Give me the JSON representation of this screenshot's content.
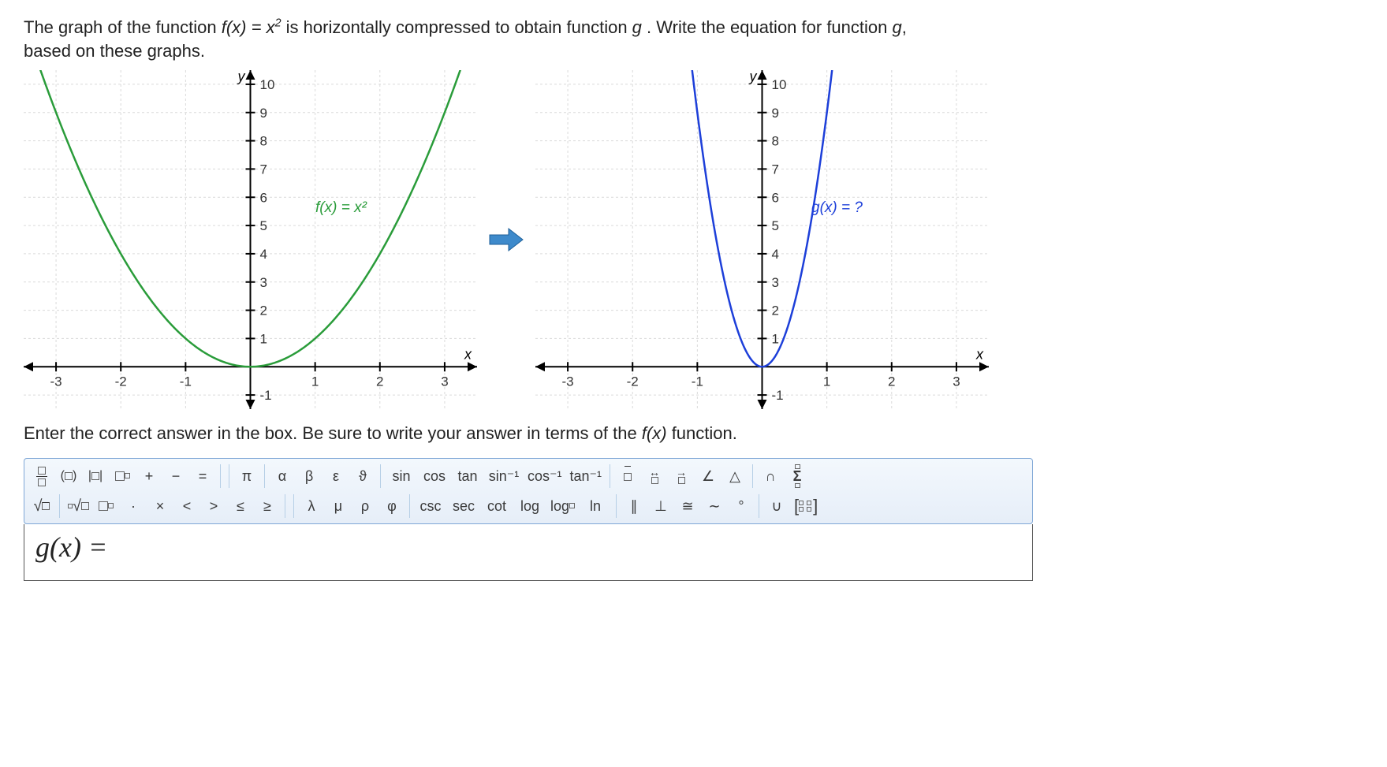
{
  "question": {
    "line1_prefix": "The graph of the function ",
    "fx": "f(x) = x",
    "fx_exp": "2",
    "line1_suffix": " is horizontally compressed to obtain function ",
    "gvar": "g",
    "line1_end": ". Write the equation for function ",
    "gvar2": "g",
    "line1_comma": ",",
    "line2": "based on these graphs."
  },
  "graph_left": {
    "title_axis_y": "y",
    "title_axis_x": "x",
    "curve_label": "f(x) = x²",
    "curve_color": "#2a9c3a",
    "domain": {
      "xmin": -3.5,
      "xmax": 3.5,
      "ymin": -1.5,
      "ymax": 10.5
    },
    "x_ticks": [
      -3,
      -2,
      -1,
      1,
      2,
      3
    ],
    "y_ticks": [
      -1,
      1,
      2,
      3,
      4,
      5,
      6,
      7,
      8,
      9,
      10
    ],
    "grid_color": "#dadada",
    "curve": "x*x"
  },
  "graph_right": {
    "title_axis_y": "y",
    "title_axis_x": "x",
    "curve_label": "g(x) = ?",
    "curve_color": "#1d3fd9",
    "domain": {
      "xmin": -3.5,
      "xmax": 3.5,
      "ymin": -1.5,
      "ymax": 10.5
    },
    "x_ticks": [
      -3,
      -2,
      -1,
      1,
      2,
      3
    ],
    "y_ticks": [
      -1,
      1,
      2,
      3,
      4,
      5,
      6,
      7,
      8,
      9,
      10
    ],
    "grid_color": "#dadada",
    "curve_scale": 3
  },
  "instruction": {
    "prefix": "Enter the correct answer in the box. Be sure to write your answer in terms of the ",
    "fx_ref": "f(x)",
    "suffix": " function."
  },
  "toolbar": {
    "row1": [
      "frac",
      "paren",
      "abs",
      "exp",
      "plus",
      "minus",
      "equals",
      "",
      "",
      "pi",
      "",
      "alpha",
      "beta",
      "eps",
      "theta",
      "",
      "sin",
      "cos",
      "tan",
      "asin",
      "acos",
      "atan",
      "",
      "vecbar",
      "harrs",
      "harr",
      "angle",
      "tri",
      "",
      "cap",
      "sigma"
    ],
    "row2": [
      "sqrt",
      "",
      "nroot",
      "sub",
      "dot",
      "times",
      "lt",
      "gt",
      "le",
      "ge",
      "",
      "",
      "lambda",
      "mu",
      "rho",
      "phi",
      "",
      "csc",
      "sec",
      "cot",
      "log",
      "logb",
      "ln",
      "",
      "para",
      "perp",
      "approx",
      "tilde",
      "deg",
      "",
      "cup",
      "matrix"
    ],
    "labels": {
      "frac": "□/□",
      "paren": "(□)",
      "abs": "|□|",
      "exp": "□^□",
      "plus": "+",
      "minus": "−",
      "equals": "=",
      "pi": "π",
      "alpha": "α",
      "beta": "β",
      "eps": "ε",
      "theta": "ϑ",
      "sin": "sin",
      "cos": "cos",
      "tan": "tan",
      "asin": "sin⁻¹",
      "acos": "cos⁻¹",
      "atan": "tan⁻¹",
      "vecbar": "□̄",
      "harrs": "↔",
      "harr": "→",
      "angle": "∠",
      "tri": "△",
      "cap": "∩",
      "sigma": "Σ",
      "sqrt": "√□",
      "nroot": "ⁿ√□",
      "sub": "□□",
      "dot": "·",
      "times": "×",
      "lt": "<",
      "gt": ">",
      "le": "≤",
      "ge": "≥",
      "lambda": "λ",
      "mu": "μ",
      "rho": "ρ",
      "phi": "φ",
      "csc": "csc",
      "sec": "sec",
      "cot": "cot",
      "log": "log",
      "logb": "log□",
      "ln": "ln",
      "para": "∥",
      "perp": "⊥",
      "approx": "≅",
      "tilde": "∼",
      "deg": "°",
      "cup": "∪",
      "matrix": "[::]"
    }
  },
  "answer": {
    "label": "g(x) ="
  }
}
